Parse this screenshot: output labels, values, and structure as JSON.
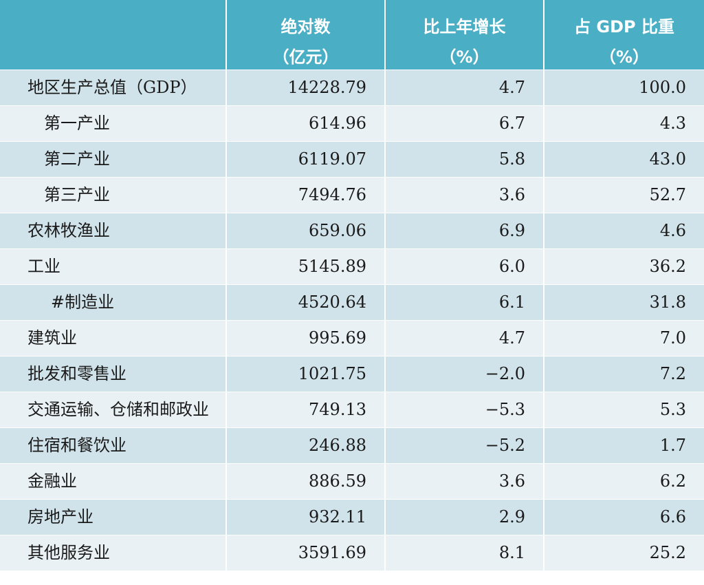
{
  "table": {
    "headers": [
      {
        "line1": "",
        "line2": ""
      },
      {
        "line1": "绝对数",
        "line2": "（亿元）"
      },
      {
        "line1": "比上年增长",
        "line2": "（%）"
      },
      {
        "line1": "占 GDP 比重",
        "line2": "（%）"
      }
    ],
    "rows": [
      {
        "label": "地区生产总值（GDP）",
        "absolute": "14228.79",
        "growth": "4.7",
        "share": "100.0"
      },
      {
        "label": "第一产业",
        "absolute": "614.96",
        "growth": "6.7",
        "share": "4.3"
      },
      {
        "label": "第二产业",
        "absolute": "6119.07",
        "growth": "5.8",
        "share": "43.0"
      },
      {
        "label": "第三产业",
        "absolute": "7494.76",
        "growth": "3.6",
        "share": "52.7"
      },
      {
        "label": "农林牧渔业",
        "absolute": "659.06",
        "growth": "6.9",
        "share": "4.6"
      },
      {
        "label": "工业",
        "absolute": "5145.89",
        "growth": "6.0",
        "share": "36.2"
      },
      {
        "label": "#制造业",
        "absolute": "4520.64",
        "growth": "6.1",
        "share": "31.8"
      },
      {
        "label": "建筑业",
        "absolute": "995.69",
        "growth": "4.7",
        "share": "7.0"
      },
      {
        "label": "批发和零售业",
        "absolute": "1021.75",
        "growth": "−2.0",
        "share": "7.2"
      },
      {
        "label": "交通运输、仓储和邮政业",
        "absolute": "749.13",
        "growth": "−5.3",
        "share": "5.3"
      },
      {
        "label": "住宿和餐饮业",
        "absolute": "246.88",
        "growth": "−5.2",
        "share": "1.7"
      },
      {
        "label": "金融业",
        "absolute": "886.59",
        "growth": "3.6",
        "share": "6.2"
      },
      {
        "label": "房地产业",
        "absolute": "932.11",
        "growth": "2.9",
        "share": "6.6"
      },
      {
        "label": "其他服务业",
        "absolute": "3591.69",
        "growth": "8.1",
        "share": "25.2"
      }
    ]
  },
  "colors": {
    "header_bg": "#4aaec4",
    "row_odd": "#d1e3ea",
    "row_even": "#e9f1f4"
  }
}
